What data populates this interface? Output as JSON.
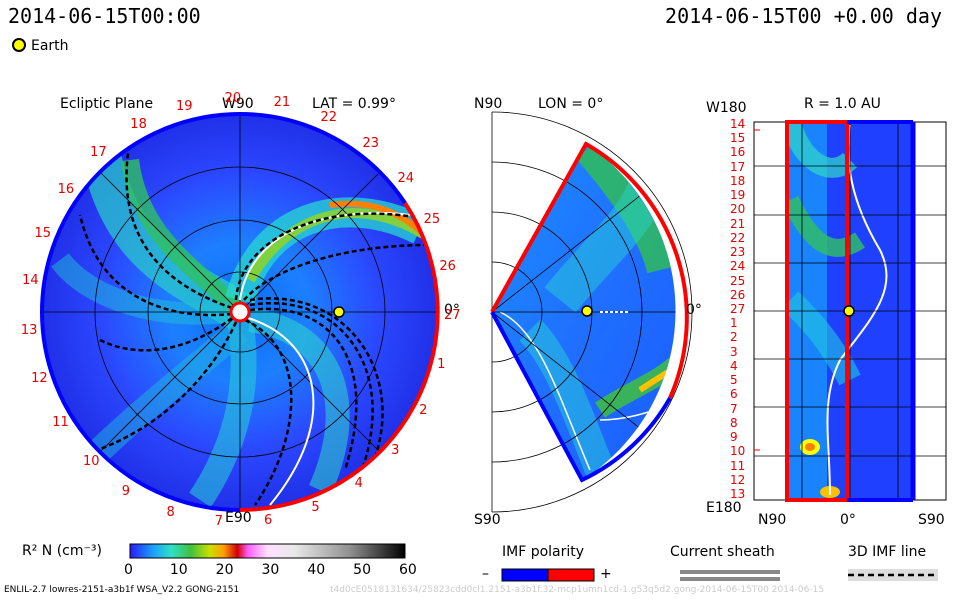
{
  "header": {
    "timestamp_left": "2014-06-15T00:00",
    "timestamp_right": "2014-06-15T00 +0.00 day",
    "legend_earth": "Earth"
  },
  "panels": {
    "ecliptic": {
      "title": "Ecliptic Plane",
      "top_label": "W90",
      "lat_label": "LAT = 0.99°",
      "bottom_label": "E90",
      "right_label": "0°",
      "carrington_ticks": [
        "19",
        "20",
        "21",
        "22",
        "23",
        "24",
        "25",
        "26",
        "27",
        "1",
        "2",
        "3",
        "4",
        "5",
        "6",
        "7",
        "8",
        "9",
        "10",
        "11",
        "12",
        "13",
        "14",
        "15",
        "16",
        "17",
        "18"
      ]
    },
    "meridional": {
      "top_label": "N90",
      "lon_label": "LON = 0°",
      "bottom_label": "S90",
      "right_label": "0°"
    },
    "radial": {
      "left_top_label": "W180",
      "r_label": "R = 1.0 AU",
      "left_bottom_label": "E180",
      "bottom_left_label": "N90",
      "bottom_mid_label": "0°",
      "bottom_right_label": "S90",
      "y_ticks": [
        "14",
        "15",
        "16",
        "17",
        "18",
        "19",
        "20",
        "21",
        "22",
        "23",
        "24",
        "25",
        "26",
        "27",
        "1",
        "2",
        "3",
        "4",
        "5",
        "6",
        "7",
        "8",
        "9",
        "10",
        "11",
        "12",
        "13"
      ]
    }
  },
  "colorbar": {
    "label": "R² N (cm⁻³)",
    "ticks": [
      "0",
      "10",
      "20",
      "30",
      "40",
      "50",
      "60"
    ]
  },
  "legends": {
    "imf_title": "IMF polarity",
    "imf_minus": "–",
    "imf_plus": "+",
    "sheath_title": "Current sheath",
    "imf3d_title": "3D IMF line"
  },
  "footer": {
    "text": "ENLIL-2.7 lowres-2151-a3b1f WSA_V2.2 GONG-2151",
    "faint": "t4d0cE0518131634/25823cdd0cl1.2151-a3b1f.32-mcp1umn1cd-1.g53q5d2.gong-2014-06-15T00    2014-06-15"
  },
  "chart_data": {
    "type": "heatmap",
    "quantity": "R² N (cm⁻³)",
    "colorbar_range": [
      0,
      60
    ],
    "colors": {
      "imf_negative": "#0000ff",
      "imf_positive": "#ff0000",
      "earth": "#ffff00"
    },
    "earth": {
      "r_au": 1.0,
      "lat": 0.99,
      "lon": 0
    }
  }
}
